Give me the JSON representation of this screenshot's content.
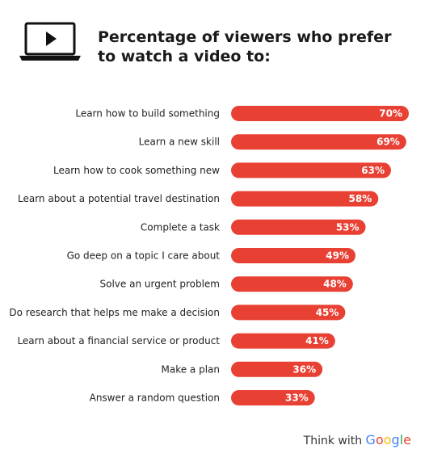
{
  "title": {
    "line1": "Percentage of viewers who prefer",
    "line2": "to watch a video to:"
  },
  "footer": {
    "prefix": "Think with ",
    "brand_letters": [
      "G",
      "o",
      "o",
      "g",
      "l",
      "e"
    ],
    "brand_colors": [
      "#4285F4",
      "#EA4335",
      "#FBBC05",
      "#4285F4",
      "#34A853",
      "#EA4335"
    ]
  },
  "icon": "laptop-play-icon",
  "colors": {
    "bar": "#E84134",
    "label_text": "#222222",
    "value_text": "#ffffff"
  },
  "chart_data": {
    "type": "bar",
    "orientation": "horizontal",
    "categories": [
      "Learn how to build something",
      "Learn a new skill",
      "Learn how to cook something new",
      "Learn about a potential travel destination",
      "Complete a task",
      "Go deep on a topic I care about",
      "Solve an urgent problem",
      "Do research that helps me make a decision",
      "Learn about a financial service or product",
      "Make a plan",
      "Answer a random question"
    ],
    "values": [
      70,
      69,
      63,
      58,
      53,
      49,
      48,
      45,
      41,
      36,
      33
    ],
    "value_labels": [
      "70%",
      "69%",
      "63%",
      "58%",
      "53%",
      "49%",
      "48%",
      "45%",
      "41%",
      "36%",
      "33%"
    ],
    "unit": "%",
    "xlim": [
      0,
      70
    ],
    "grid": false,
    "legend": "none"
  }
}
